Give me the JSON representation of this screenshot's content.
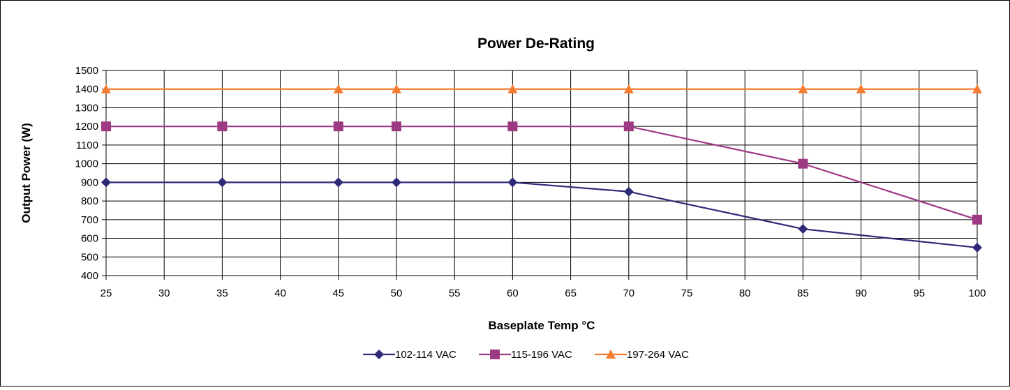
{
  "chart_data": {
    "type": "line",
    "title": "Power De-Rating",
    "xlabel": "Baseplate Temp °C",
    "ylabel": "Output Power (W)",
    "xlim": [
      25,
      100
    ],
    "ylim": [
      400,
      1500
    ],
    "x_ticks": [
      25,
      30,
      35,
      40,
      45,
      50,
      55,
      60,
      65,
      70,
      75,
      80,
      85,
      90,
      95,
      100
    ],
    "y_ticks": [
      400,
      500,
      600,
      700,
      800,
      900,
      1000,
      1100,
      1200,
      1300,
      1400,
      1500
    ],
    "grid": true,
    "legend_position": "bottom-center",
    "series": [
      {
        "name": "102-114 VAC",
        "color": "#2e2a78",
        "marker": "diamond",
        "x": [
          25,
          35,
          45,
          50,
          60,
          70,
          85,
          100
        ],
        "values": [
          900,
          900,
          900,
          900,
          900,
          850,
          650,
          550
        ]
      },
      {
        "name": "115-196 VAC",
        "color": "#9e3a84",
        "marker": "square",
        "x": [
          25,
          35,
          45,
          50,
          60,
          70,
          85,
          100
        ],
        "values": [
          1200,
          1200,
          1200,
          1200,
          1200,
          1200,
          1000,
          700
        ]
      },
      {
        "name": "197-264 VAC",
        "color": "#f47c30",
        "marker": "triangle",
        "x": [
          25,
          45,
          50,
          60,
          70,
          85,
          90,
          100
        ],
        "values": [
          1400,
          1400,
          1400,
          1400,
          1400,
          1400,
          1400,
          1400
        ]
      }
    ]
  }
}
